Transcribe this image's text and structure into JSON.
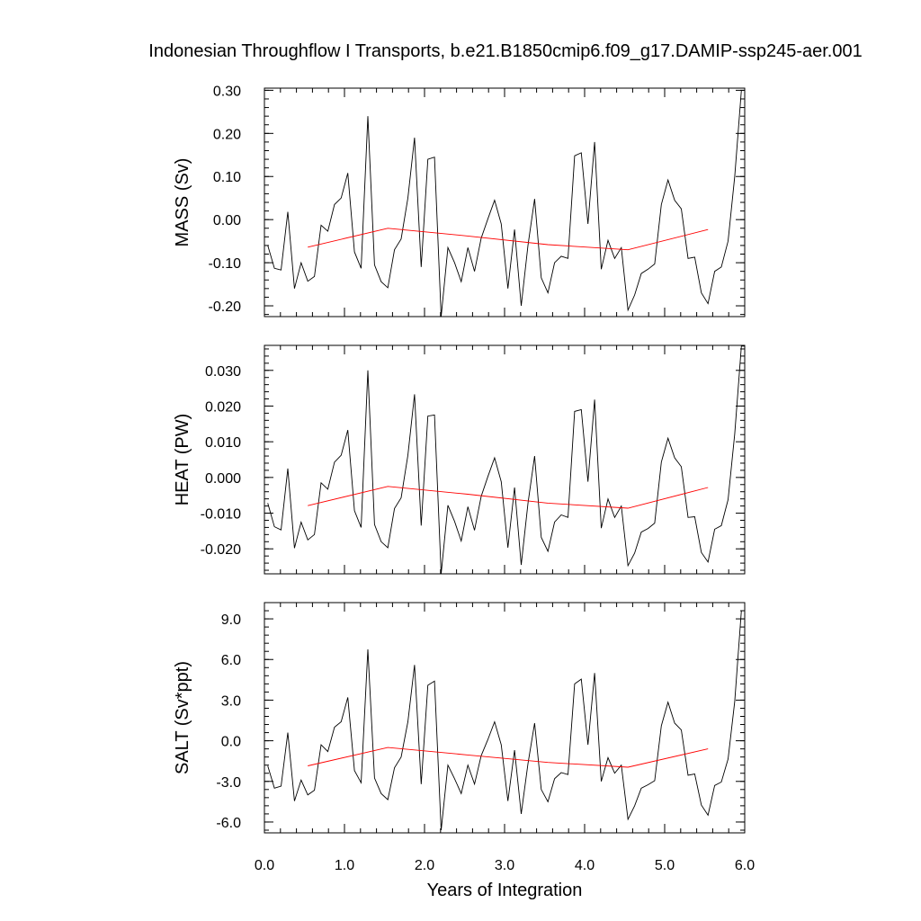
{
  "title": "Indonesian Throughflow I Transports, b.e21.B1850cmip6.f09_g17.DAMIP-ssp245-aer.001",
  "xlabel": "Years of Integration",
  "colors": {
    "raw_line": "#000000",
    "mean_line": "#ff0000",
    "axes": "#000000"
  },
  "chart_data": [
    {
      "type": "line",
      "ylabel": "MASS (Sv)",
      "xlim": [
        0.0,
        6.0
      ],
      "ylim": [
        -0.225,
        0.305
      ],
      "x_ticks": [
        0.0,
        1.0,
        2.0,
        3.0,
        4.0,
        5.0,
        6.0
      ],
      "x_tick_labels": [
        "0.0",
        "1.0",
        "2.0",
        "3.0",
        "4.0",
        "5.0",
        "6.0"
      ],
      "y_ticks": [
        -0.2,
        -0.1,
        0.0,
        0.1,
        0.2,
        0.3
      ],
      "y_tick_labels": [
        "-0.20",
        "-0.10",
        "0.00",
        "0.10",
        "0.20",
        "0.30"
      ],
      "x_tick_labels_visible": false,
      "series": [
        {
          "color": "#000000",
          "x": [
            0.042,
            0.125,
            0.208,
            0.292,
            0.375,
            0.458,
            0.542,
            0.625,
            0.708,
            0.792,
            0.875,
            0.958,
            1.042,
            1.125,
            1.208,
            1.292,
            1.375,
            1.458,
            1.542,
            1.625,
            1.708,
            1.792,
            1.875,
            1.958,
            2.042,
            2.125,
            2.208,
            2.292,
            2.375,
            2.458,
            2.542,
            2.625,
            2.708,
            2.792,
            2.875,
            2.958,
            3.042,
            3.125,
            3.208,
            3.292,
            3.375,
            3.458,
            3.542,
            3.625,
            3.708,
            3.792,
            3.875,
            3.958,
            4.042,
            4.125,
            4.208,
            4.292,
            4.375,
            4.458,
            4.542,
            4.625,
            4.708,
            4.792,
            4.875,
            4.958,
            5.042,
            5.125,
            5.208,
            5.292,
            5.375,
            5.458,
            5.542,
            5.625,
            5.708,
            5.792,
            5.875,
            5.958,
            6.0
          ],
          "y": [
            -0.06,
            -0.113,
            -0.117,
            0.018,
            -0.16,
            -0.1,
            -0.143,
            -0.132,
            -0.013,
            -0.027,
            0.035,
            0.05,
            0.108,
            -0.075,
            -0.113,
            0.24,
            -0.105,
            -0.144,
            -0.158,
            -0.07,
            -0.045,
            0.05,
            0.19,
            -0.11,
            0.14,
            0.145,
            -0.225,
            -0.065,
            -0.1,
            -0.144,
            -0.065,
            -0.12,
            -0.043,
            0.002,
            0.045,
            -0.01,
            -0.16,
            -0.023,
            -0.2,
            -0.06,
            0.048,
            -0.135,
            -0.17,
            -0.1,
            -0.085,
            -0.09,
            0.148,
            0.155,
            -0.01,
            0.18,
            -0.115,
            -0.048,
            -0.09,
            -0.065,
            -0.21,
            -0.175,
            -0.125,
            -0.115,
            -0.103,
            0.035,
            0.092,
            0.045,
            0.025,
            -0.09,
            -0.087,
            -0.17,
            -0.195,
            -0.12,
            -0.11,
            -0.05,
            0.1,
            0.3,
            0.3
          ]
        },
        {
          "color": "#ff0000",
          "x": [
            0.542,
            1.542,
            2.542,
            3.542,
            4.542,
            5.542
          ],
          "y": [
            -0.064,
            -0.02,
            -0.038,
            -0.058,
            -0.07,
            -0.023
          ]
        }
      ]
    },
    {
      "type": "line",
      "ylabel": "HEAT (PW)",
      "xlim": [
        0.0,
        6.0
      ],
      "ylim": [
        -0.027,
        0.037
      ],
      "x_ticks": [
        0.0,
        1.0,
        2.0,
        3.0,
        4.0,
        5.0,
        6.0
      ],
      "x_tick_labels": [
        "0.0",
        "1.0",
        "2.0",
        "3.0",
        "4.0",
        "5.0",
        "6.0"
      ],
      "y_ticks": [
        -0.02,
        -0.01,
        0.0,
        0.01,
        0.02,
        0.03
      ],
      "y_tick_labels": [
        "-0.020",
        "-0.010",
        "0.000",
        "0.010",
        "0.020",
        "0.030"
      ],
      "x_tick_labels_visible": false,
      "series": [
        {
          "color": "#000000",
          "x": [
            0.042,
            0.125,
            0.208,
            0.292,
            0.375,
            0.458,
            0.542,
            0.625,
            0.708,
            0.792,
            0.875,
            0.958,
            1.042,
            1.125,
            1.208,
            1.292,
            1.375,
            1.458,
            1.542,
            1.625,
            1.708,
            1.792,
            1.875,
            1.958,
            2.042,
            2.125,
            2.208,
            2.292,
            2.375,
            2.458,
            2.542,
            2.625,
            2.708,
            2.792,
            2.875,
            2.958,
            3.042,
            3.125,
            3.208,
            3.292,
            3.375,
            3.458,
            3.542,
            3.625,
            3.708,
            3.792,
            3.875,
            3.958,
            4.042,
            4.125,
            4.208,
            4.292,
            4.375,
            4.458,
            4.542,
            4.625,
            4.708,
            4.792,
            4.875,
            4.958,
            5.042,
            5.125,
            5.208,
            5.292,
            5.375,
            5.458,
            5.542,
            5.625,
            5.708,
            5.792,
            5.875,
            5.958,
            6.0
          ],
          "y": [
            -0.0072,
            -0.0138,
            -0.0147,
            0.0025,
            -0.0198,
            -0.0125,
            -0.0175,
            -0.016,
            -0.0015,
            -0.0033,
            0.0043,
            0.0062,
            0.0133,
            -0.0093,
            -0.014,
            0.03,
            -0.0132,
            -0.018,
            -0.0197,
            -0.0087,
            -0.0057,
            0.0062,
            0.0233,
            -0.0135,
            0.0172,
            0.0175,
            -0.027,
            -0.0078,
            -0.0123,
            -0.0178,
            -0.0082,
            -0.0148,
            -0.0053,
            0.0003,
            0.0055,
            -0.0012,
            -0.0197,
            -0.0028,
            -0.0245,
            -0.0073,
            0.006,
            -0.0168,
            -0.0207,
            -0.0125,
            -0.0105,
            -0.0112,
            0.0185,
            0.019,
            -0.0012,
            0.0218,
            -0.0142,
            -0.006,
            -0.0112,
            -0.008,
            -0.0247,
            -0.0212,
            -0.0153,
            -0.0143,
            -0.0128,
            0.0043,
            0.011,
            0.0055,
            0.003,
            -0.0112,
            -0.011,
            -0.021,
            -0.0237,
            -0.0145,
            -0.0135,
            -0.0062,
            0.0122,
            0.0368,
            0.0368
          ]
        },
        {
          "color": "#ff0000",
          "x": [
            0.542,
            1.542,
            2.542,
            3.542,
            4.542,
            5.542
          ],
          "y": [
            -0.0079,
            -0.0025,
            -0.0047,
            -0.0072,
            -0.0086,
            -0.0028
          ]
        }
      ]
    },
    {
      "type": "line",
      "ylabel": "SALT (Sv*ppt)",
      "xlim": [
        0.0,
        6.0
      ],
      "ylim": [
        -6.8,
        10.2
      ],
      "x_ticks": [
        0.0,
        1.0,
        2.0,
        3.0,
        4.0,
        5.0,
        6.0
      ],
      "x_tick_labels": [
        "0.0",
        "1.0",
        "2.0",
        "3.0",
        "4.0",
        "5.0",
        "6.0"
      ],
      "y_ticks": [
        -6.0,
        -3.0,
        0.0,
        3.0,
        6.0,
        9.0
      ],
      "y_tick_labels": [
        "-6.0",
        "-3.0",
        "0.0",
        "3.0",
        "6.0",
        "9.0"
      ],
      "x_tick_labels_visible": true,
      "series": [
        {
          "color": "#000000",
          "x": [
            0.042,
            0.125,
            0.208,
            0.292,
            0.375,
            0.458,
            0.542,
            0.625,
            0.708,
            0.792,
            0.875,
            0.958,
            1.042,
            1.125,
            1.208,
            1.292,
            1.375,
            1.458,
            1.542,
            1.625,
            1.708,
            1.792,
            1.875,
            1.958,
            2.042,
            2.125,
            2.208,
            2.292,
            2.375,
            2.458,
            2.542,
            2.625,
            2.708,
            2.792,
            2.875,
            2.958,
            3.042,
            3.125,
            3.208,
            3.292,
            3.375,
            3.458,
            3.542,
            3.625,
            3.708,
            3.792,
            3.875,
            3.958,
            4.042,
            4.125,
            4.208,
            4.292,
            4.375,
            4.458,
            4.542,
            4.625,
            4.708,
            4.792,
            4.875,
            4.958,
            5.042,
            5.125,
            5.208,
            5.292,
            5.375,
            5.458,
            5.542,
            5.625,
            5.708,
            5.792,
            5.875,
            5.958,
            6.0
          ],
          "y": [
            -1.85,
            -3.5,
            -3.35,
            0.6,
            -4.45,
            -2.9,
            -4.0,
            -3.65,
            -0.3,
            -0.8,
            1.0,
            1.4,
            3.2,
            -2.2,
            -3.1,
            6.75,
            -2.75,
            -3.9,
            -4.35,
            -2.0,
            -1.2,
            1.4,
            5.6,
            -3.2,
            4.1,
            4.4,
            -6.6,
            -1.8,
            -2.8,
            -3.9,
            -1.8,
            -3.2,
            -1.1,
            0.1,
            1.4,
            -0.3,
            -4.45,
            -0.7,
            -5.4,
            -1.7,
            1.3,
            -3.6,
            -4.5,
            -2.8,
            -2.35,
            -2.5,
            4.2,
            4.55,
            -0.3,
            5.0,
            -3.0,
            -1.25,
            -2.4,
            -1.8,
            -5.8,
            -4.8,
            -3.5,
            -3.25,
            -2.95,
            1.1,
            2.85,
            1.3,
            0.8,
            -2.55,
            -2.45,
            -4.75,
            -5.5,
            -3.3,
            -3.05,
            -1.35,
            2.9,
            9.6,
            9.6
          ]
        },
        {
          "color": "#ff0000",
          "x": [
            0.542,
            1.542,
            2.542,
            3.542,
            4.542,
            5.542
          ],
          "y": [
            -1.85,
            -0.5,
            -1.05,
            -1.6,
            -1.95,
            -0.6
          ]
        }
      ]
    }
  ]
}
